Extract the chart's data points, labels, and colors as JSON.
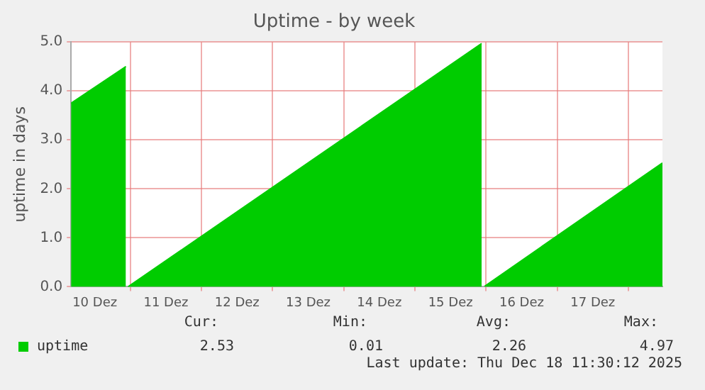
{
  "chart_data": {
    "type": "area",
    "title": "Uptime - by week",
    "ylabel": "uptime in days",
    "series": [
      {
        "name": "uptime",
        "color": "#00cc00",
        "x": [
          "2025-12-10T04:00",
          "2025-12-10T22:30",
          "2025-12-10T23:00",
          "2025-12-10T23:15",
          "2025-12-15T22:30",
          "2025-12-15T23:00",
          "2025-12-15T23:30",
          "2025-12-18T11:30"
        ],
        "values": [
          3.75,
          4.5,
          null,
          0.0,
          4.97,
          null,
          0.01,
          2.53
        ]
      }
    ],
    "xlim": [
      "2025-12-10T04:00",
      "2025-12-18T11:30"
    ],
    "xticks": [
      {
        "value": "2025-12-10T12:00",
        "label": "10 Dez"
      },
      {
        "value": "2025-12-11T00:00",
        "label": null
      },
      {
        "value": "2025-12-11T12:00",
        "label": "11 Dez"
      },
      {
        "value": "2025-12-12T00:00",
        "label": null
      },
      {
        "value": "2025-12-12T12:00",
        "label": "12 Dez"
      },
      {
        "value": "2025-12-13T00:00",
        "label": null
      },
      {
        "value": "2025-12-13T12:00",
        "label": "13 Dez"
      },
      {
        "value": "2025-12-14T00:00",
        "label": null
      },
      {
        "value": "2025-12-14T12:00",
        "label": "14 Dez"
      },
      {
        "value": "2025-12-15T00:00",
        "label": null
      },
      {
        "value": "2025-12-15T12:00",
        "label": "15 Dez"
      },
      {
        "value": "2025-12-16T00:00",
        "label": null
      },
      {
        "value": "2025-12-16T12:00",
        "label": "16 Dez"
      },
      {
        "value": "2025-12-17T00:00",
        "label": null
      },
      {
        "value": "2025-12-17T12:00",
        "label": "17 Dez"
      },
      {
        "value": "2025-12-18T00:00",
        "label": null
      }
    ],
    "ylim": [
      0,
      5
    ],
    "yticks": [
      {
        "value": 0,
        "label": "0.0"
      },
      {
        "value": 1,
        "label": "1.0"
      },
      {
        "value": 2,
        "label": "2.0"
      },
      {
        "value": 3,
        "label": "3.0"
      },
      {
        "value": 4,
        "label": "4.0"
      },
      {
        "value": 5,
        "label": "5.0"
      }
    ],
    "grid": true,
    "legend": "bottom",
    "annotations": [
      "Cur:",
      "Min:",
      "Avg:",
      "Max:",
      "2.53",
      "0.01",
      "2.26",
      "4.97",
      "Last update: Thu Dec 18 11:30:12 2025"
    ]
  }
}
